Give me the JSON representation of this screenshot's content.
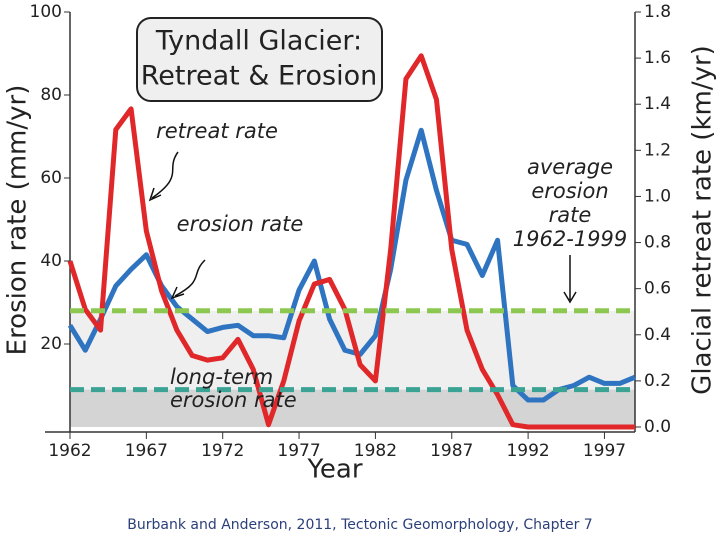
{
  "chart_data": {
    "type": "line",
    "title": [
      "Tyndall Glacier:",
      "Retreat & Erosion"
    ],
    "x_label": "Year",
    "y_label": "Erosion rate (mm/yr)",
    "y2_label": "Glacial retreat rate (km/yr)",
    "x": [
      1962,
      1963,
      1964,
      1965,
      1966,
      1967,
      1968,
      1969,
      1970,
      1971,
      1972,
      1973,
      1974,
      1975,
      1976,
      1977,
      1978,
      1979,
      1980,
      1981,
      1982,
      1983,
      1984,
      1985,
      1986,
      1987,
      1988,
      1989,
      1990,
      1991,
      1992,
      1993,
      1994,
      1995,
      1996,
      1997,
      1998,
      1999
    ],
    "xlim": [
      1962,
      1999
    ],
    "xticks": [
      1962,
      1967,
      1972,
      1977,
      1982,
      1987,
      1992,
      1997
    ],
    "ylim": [
      0,
      100
    ],
    "yticks": [
      20,
      40,
      60,
      80,
      100
    ],
    "y2lim": [
      0,
      1.8
    ],
    "y2ticks": [
      {
        "value": 0,
        "label": "0.0"
      },
      0.2,
      0.4,
      0.6,
      0.8,
      {
        "value": 1,
        "label": "1.0"
      },
      1.2,
      1.4,
      1.6,
      1.8
    ],
    "series": [
      {
        "name": "erosion rate",
        "color": "#2f74c0",
        "values": [
          24.5,
          18.5,
          26,
          34,
          38,
          41.5,
          34,
          29,
          26,
          23,
          24,
          24.5,
          22,
          22,
          21.5,
          33,
          40,
          26,
          18.5,
          17.5,
          22,
          38,
          59.5,
          71.5,
          57,
          45,
          44,
          36.5,
          45,
          10,
          6.5,
          6.5,
          9,
          10,
          12,
          10.5,
          10.5,
          12
        ]
      },
      {
        "name": "retreat rate",
        "color": "#e0282a",
        "axis": "y2",
        "values": [
          0.72,
          0.51,
          0.42,
          1.29,
          1.38,
          0.85,
          0.59,
          0.42,
          0.31,
          0.29,
          0.3,
          0.38,
          0.25,
          0.01,
          0.2,
          0.46,
          0.62,
          0.64,
          0.51,
          0.27,
          0.2,
          0.77,
          1.51,
          1.61,
          1.42,
          0.77,
          0.42,
          0.25,
          0.14,
          0.01,
          0,
          0,
          0,
          0,
          0,
          0,
          0,
          0
        ]
      }
    ],
    "reference_lines": [
      {
        "label": [
          "average",
          "erosion",
          "rate",
          "1962-1999"
        ],
        "value": 28,
        "color": "#8cc850",
        "fill": "#efefef"
      },
      {
        "label": [
          "long-term",
          "erosion rate"
        ],
        "value": 9,
        "color": "#3aa393",
        "fill": "#d4d4d4"
      }
    ],
    "caption": "Burbank and Anderson, 2011, Tectonic Geomorphology, Chapter 7"
  }
}
